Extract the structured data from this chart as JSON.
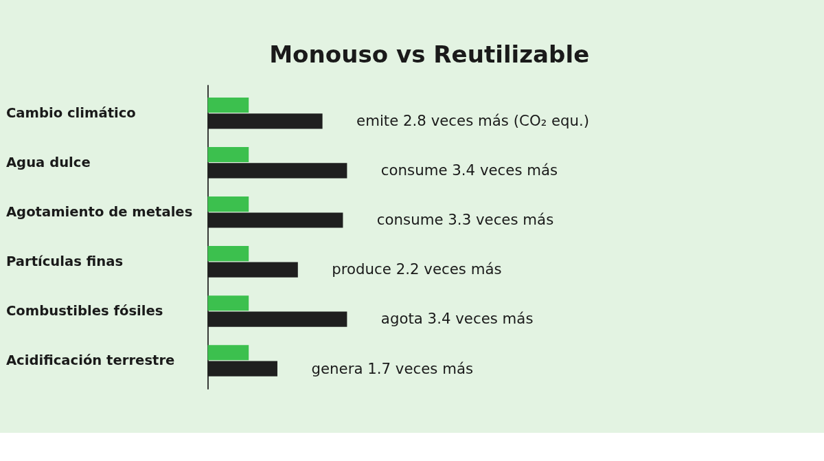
{
  "chart_data": {
    "type": "bar",
    "orientation": "horizontal",
    "title": "Monouso vs Reutilizable",
    "categories": [
      "Cambio climático",
      "Agua dulce",
      "Agotamiento de metales",
      "Partículas finas",
      "Combustibles fósiles",
      "Acidificación terrestre"
    ],
    "series": [
      {
        "color": "#3cc04e",
        "values": [
          1,
          1,
          1,
          1,
          1,
          1
        ]
      },
      {
        "color": "#1f1f1f",
        "values": [
          2.8,
          3.4,
          3.3,
          2.2,
          3.4,
          1.7
        ],
        "value_labels": [
          "emite 2.8 veces más (CO₂ equ.)",
          "consume 3.4 veces más",
          "consume 3.3 veces más",
          "produce 2.2 veces más",
          "agota 3.4 veces más",
          "genera 1.7 veces más"
        ]
      }
    ],
    "legend": false,
    "grid": false
  }
}
